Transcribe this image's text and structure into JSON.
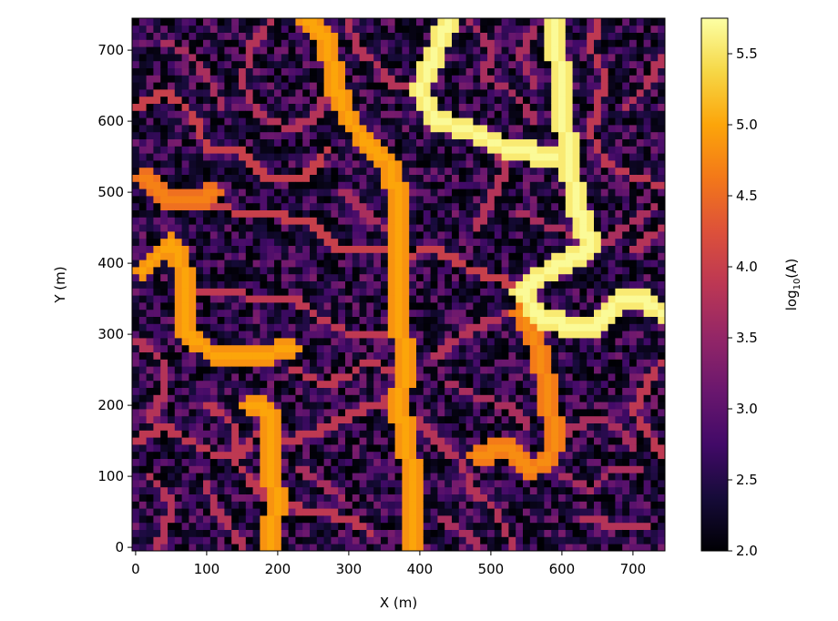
{
  "chart_data": {
    "type": "heatmap",
    "title": "",
    "xlabel": "X (m)",
    "ylabel": "Y (m)",
    "xlim": [
      -5,
      745
    ],
    "ylim": [
      -5,
      745
    ],
    "cell_size": 10,
    "xticks": [
      0,
      100,
      200,
      300,
      400,
      500,
      600,
      700
    ],
    "yticks": [
      0,
      100,
      200,
      300,
      400,
      500,
      600,
      700
    ],
    "xtick_labels": [
      "0",
      "100",
      "200",
      "300",
      "400",
      "500",
      "600",
      "700"
    ],
    "ytick_labels": [
      "0",
      "100",
      "200",
      "300",
      "400",
      "500",
      "600",
      "700"
    ],
    "colorbar": {
      "label_main": "log",
      "label_sub": "10",
      "label_tail": "(A)",
      "range": [
        2.0,
        5.75
      ],
      "ticks": [
        2.0,
        2.5,
        3.0,
        3.5,
        4.0,
        4.5,
        5.0,
        5.5
      ],
      "tick_labels": [
        "2.0",
        "2.5",
        "3.0",
        "3.5",
        "4.0",
        "4.5",
        "5.0",
        "5.5"
      ],
      "colormap": "inferno"
    },
    "background_value_range": [
      2.0,
      3.3
    ],
    "grid": false,
    "channels": [
      {
        "value": 5.7,
        "path": [
          [
            440,
            740
          ],
          [
            420,
            690
          ],
          [
            400,
            640
          ],
          [
            420,
            600
          ],
          [
            460,
            590
          ],
          [
            520,
            560
          ],
          [
            590,
            550
          ]
        ]
      },
      {
        "value": 5.0,
        "path": [
          [
            240,
            740
          ],
          [
            270,
            710
          ],
          [
            280,
            650
          ],
          [
            300,
            600
          ],
          [
            330,
            560
          ],
          [
            360,
            540
          ],
          [
            370,
            470
          ],
          [
            370,
            330
          ],
          [
            380,
            250
          ],
          [
            370,
            200
          ],
          [
            380,
            150
          ],
          [
            390,
            90
          ],
          [
            390,
            0
          ]
        ]
      },
      {
        "value": 5.0,
        "path": [
          [
            10,
            390
          ],
          [
            50,
            430
          ],
          [
            70,
            380
          ],
          [
            70,
            300
          ],
          [
            110,
            270
          ],
          [
            170,
            270
          ],
          [
            220,
            280
          ]
        ]
      },
      {
        "value": 5.0,
        "path": [
          [
            160,
            200
          ],
          [
            190,
            190
          ],
          [
            190,
            150
          ],
          [
            190,
            100
          ],
          [
            200,
            60
          ],
          [
            190,
            30
          ],
          [
            190,
            0
          ]
        ]
      },
      {
        "value": 4.7,
        "path": [
          [
            10,
            520
          ],
          [
            40,
            490
          ],
          [
            90,
            490
          ],
          [
            110,
            500
          ]
        ]
      },
      {
        "value": 5.7,
        "path": [
          [
            740,
            330
          ],
          [
            710,
            350
          ],
          [
            680,
            350
          ],
          [
            650,
            310
          ],
          [
            620,
            310
          ],
          [
            570,
            320
          ],
          [
            540,
            360
          ],
          [
            580,
            390
          ],
          [
            640,
            420
          ],
          [
            620,
            480
          ],
          [
            610,
            540
          ],
          [
            600,
            620
          ],
          [
            590,
            740
          ]
        ]
      },
      {
        "value": 4.8,
        "path": [
          [
            540,
            330
          ],
          [
            570,
            270
          ],
          [
            580,
            210
          ],
          [
            590,
            150
          ],
          [
            580,
            120
          ],
          [
            550,
            110
          ],
          [
            520,
            140
          ],
          [
            480,
            130
          ]
        ]
      },
      {
        "value": 4.0,
        "path": [
          [
            0,
            620
          ],
          [
            40,
            640
          ],
          [
            80,
            610
          ],
          [
            100,
            560
          ],
          [
            140,
            560
          ],
          [
            180,
            520
          ],
          [
            240,
            520
          ],
          [
            270,
            560
          ]
        ]
      },
      {
        "value": 4.0,
        "path": [
          [
            90,
            480
          ],
          [
            170,
            470
          ],
          [
            240,
            460
          ],
          [
            280,
            420
          ],
          [
            330,
            420
          ],
          [
            370,
            410
          ],
          [
            420,
            420
          ],
          [
            470,
            390
          ],
          [
            530,
            370
          ],
          [
            560,
            370
          ]
        ]
      },
      {
        "value": 3.9,
        "path": [
          [
            60,
            360
          ],
          [
            130,
            360
          ],
          [
            170,
            350
          ],
          [
            220,
            350
          ],
          [
            260,
            320
          ],
          [
            300,
            300
          ],
          [
            360,
            300
          ]
        ]
      },
      {
        "value": 3.9,
        "path": [
          [
            0,
            150
          ],
          [
            40,
            170
          ],
          [
            70,
            150
          ],
          [
            110,
            130
          ],
          [
            150,
            130
          ],
          [
            170,
            160
          ]
        ]
      },
      {
        "value": 3.8,
        "path": [
          [
            390,
            180
          ],
          [
            430,
            140
          ],
          [
            460,
            120
          ],
          [
            470,
            80
          ],
          [
            500,
            60
          ],
          [
            520,
            20
          ],
          [
            530,
            0
          ]
        ]
      },
      {
        "value": 3.8,
        "path": [
          [
            190,
            740
          ],
          [
            160,
            700
          ],
          [
            150,
            650
          ],
          [
            170,
            610
          ],
          [
            210,
            590
          ],
          [
            250,
            600
          ],
          [
            270,
            640
          ]
        ]
      },
      {
        "value": 3.8,
        "path": [
          [
            300,
            740
          ],
          [
            310,
            700
          ],
          [
            340,
            680
          ],
          [
            360,
            650
          ],
          [
            400,
            640
          ]
        ]
      },
      {
        "value": 3.9,
        "path": [
          [
            650,
            740
          ],
          [
            640,
            700
          ],
          [
            660,
            660
          ],
          [
            650,
            620
          ],
          [
            640,
            580
          ],
          [
            660,
            540
          ],
          [
            700,
            520
          ],
          [
            740,
            510
          ]
        ]
      },
      {
        "value": 3.7,
        "path": [
          [
            470,
            740
          ],
          [
            500,
            700
          ],
          [
            490,
            660
          ],
          [
            530,
            640
          ],
          [
            560,
            600
          ]
        ]
      },
      {
        "value": 3.8,
        "path": [
          [
            0,
            290
          ],
          [
            40,
            260
          ],
          [
            40,
            220
          ],
          [
            20,
            180
          ]
        ]
      },
      {
        "value": 3.9,
        "path": [
          [
            100,
            200
          ],
          [
            140,
            170
          ],
          [
            140,
            120
          ],
          [
            170,
            80
          ],
          [
            200,
            60
          ],
          [
            250,
            50
          ],
          [
            300,
            40
          ],
          [
            330,
            20
          ]
        ]
      },
      {
        "value": 3.9,
        "path": [
          [
            210,
            150
          ],
          [
            250,
            160
          ],
          [
            290,
            180
          ],
          [
            330,
            200
          ],
          [
            370,
            210
          ]
        ]
      },
      {
        "value": 3.9,
        "path": [
          [
            220,
            250
          ],
          [
            260,
            230
          ],
          [
            300,
            240
          ],
          [
            320,
            260
          ],
          [
            360,
            250
          ]
        ]
      },
      {
        "value": 3.8,
        "path": [
          [
            20,
            100
          ],
          [
            50,
            60
          ],
          [
            40,
            20
          ],
          [
            30,
            0
          ]
        ]
      },
      {
        "value": 3.8,
        "path": [
          [
            100,
            90
          ],
          [
            110,
            50
          ],
          [
            130,
            30
          ],
          [
            150,
            0
          ]
        ]
      },
      {
        "value": 3.7,
        "path": [
          [
            230,
            110
          ],
          [
            260,
            90
          ],
          [
            290,
            70
          ]
        ]
      },
      {
        "value": 3.8,
        "path": [
          [
            420,
            270
          ],
          [
            460,
            300
          ],
          [
            500,
            320
          ],
          [
            530,
            330
          ]
        ]
      },
      {
        "value": 3.7,
        "path": [
          [
            440,
            230
          ],
          [
            480,
            210
          ],
          [
            520,
            200
          ],
          [
            550,
            170
          ]
        ]
      },
      {
        "value": 3.9,
        "path": [
          [
            740,
            130
          ],
          [
            720,
            160
          ],
          [
            700,
            190
          ],
          [
            720,
            230
          ],
          [
            740,
            260
          ]
        ]
      },
      {
        "value": 3.7,
        "path": [
          [
            600,
            100
          ],
          [
            640,
            80
          ],
          [
            670,
            110
          ],
          [
            710,
            110
          ]
        ]
      },
      {
        "value": 3.7,
        "path": [
          [
            600,
            160
          ],
          [
            640,
            180
          ],
          [
            680,
            170
          ],
          [
            700,
            140
          ]
        ]
      },
      {
        "value": 3.8,
        "path": [
          [
            630,
            40
          ],
          [
            680,
            30
          ],
          [
            720,
            30
          ]
        ]
      },
      {
        "value": 3.8,
        "path": [
          [
            480,
            450
          ],
          [
            500,
            490
          ],
          [
            520,
            530
          ],
          [
            500,
            570
          ]
        ]
      },
      {
        "value": 3.7,
        "path": [
          [
            540,
            470
          ],
          [
            580,
            450
          ],
          [
            620,
            440
          ]
        ]
      },
      {
        "value": 3.8,
        "path": [
          [
            690,
            620
          ],
          [
            720,
            650
          ],
          [
            740,
            690
          ]
        ]
      },
      {
        "value": 3.7,
        "path": [
          [
            40,
            710
          ],
          [
            80,
            690
          ],
          [
            100,
            660
          ],
          [
            120,
            620
          ]
        ]
      },
      {
        "value": 3.7,
        "path": [
          [
            290,
            500
          ],
          [
            320,
            470
          ],
          [
            350,
            450
          ]
        ]
      },
      {
        "value": 3.7,
        "path": [
          [
            560,
            730
          ],
          [
            540,
            690
          ],
          [
            560,
            650
          ]
        ]
      },
      {
        "value": 3.8,
        "path": [
          [
            700,
            420
          ],
          [
            740,
            450
          ]
        ]
      },
      {
        "value": 3.7,
        "path": [
          [
            430,
            40
          ],
          [
            460,
            20
          ],
          [
            480,
            0
          ]
        ]
      },
      {
        "value": 3.7,
        "path": [
          [
            660,
            430
          ],
          [
            700,
            460
          ],
          [
            730,
            480
          ]
        ]
      }
    ]
  }
}
